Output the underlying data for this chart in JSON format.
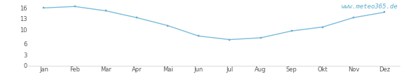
{
  "months": [
    "Jan",
    "Feb",
    "Mar",
    "Apr",
    "Mai",
    "Jun",
    "Jul",
    "Aug",
    "Sep",
    "Okt",
    "Nov",
    "Dez"
  ],
  "values": [
    16.0,
    16.4,
    15.2,
    13.3,
    11.1,
    8.2,
    7.2,
    7.7,
    9.6,
    10.7,
    13.3,
    14.8
  ],
  "line_color": "#7bbcdb",
  "marker_color": "#6aaac8",
  "background_color": "#ffffff",
  "ylim": [
    0,
    17.5
  ],
  "yticks": [
    0,
    3,
    6,
    10,
    13,
    16
  ],
  "watermark": "www.meteo365.de",
  "watermark_color": "#5aabcc",
  "watermark_fontsize": 6.5
}
